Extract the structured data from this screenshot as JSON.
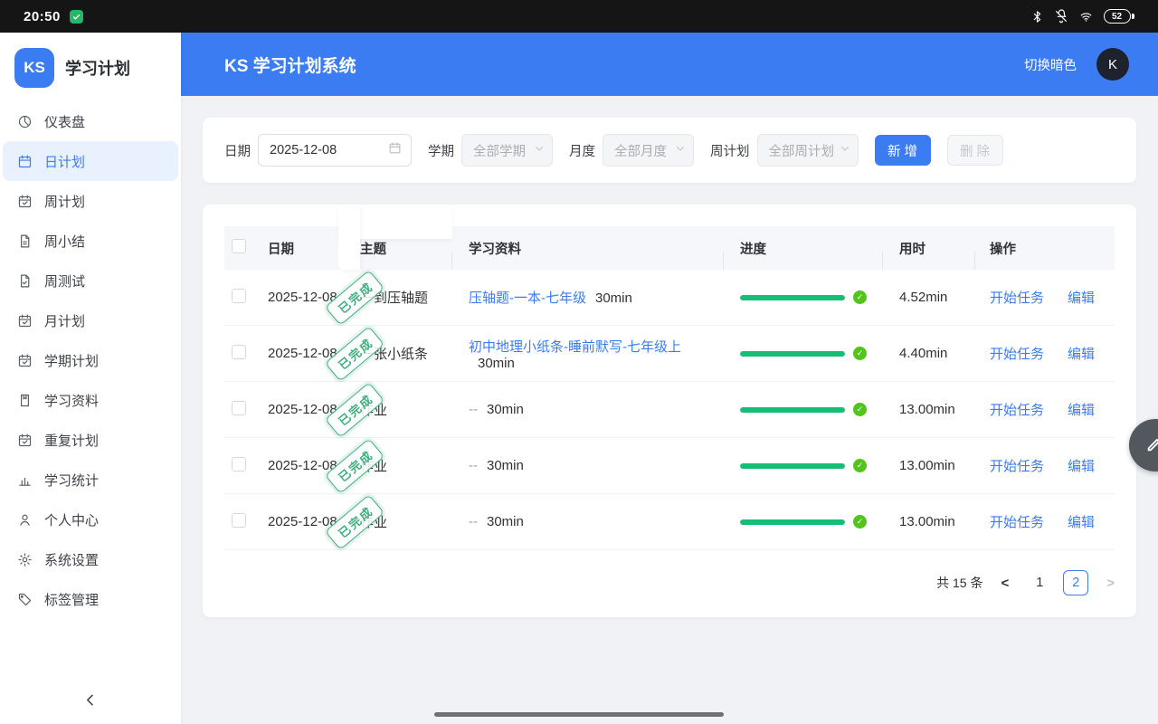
{
  "status_bar": {
    "time": "20:50",
    "battery_level": "52",
    "icons": [
      "screenshot-badge-icon",
      "bluetooth-icon",
      "notifications-off-icon",
      "wifi-icon",
      "battery-icon"
    ]
  },
  "sidebar": {
    "logo_text": "KS",
    "app_name": "学习计划",
    "collapse_button_icon": "chevron-left-icon",
    "items": [
      {
        "label": "仪表盘",
        "icon": "dashboard-icon",
        "active": false
      },
      {
        "label": "日计划",
        "icon": "calendar-icon",
        "active": true
      },
      {
        "label": "周计划",
        "icon": "calendar-check-icon",
        "active": false
      },
      {
        "label": "周小结",
        "icon": "document-icon",
        "active": false
      },
      {
        "label": "周测试",
        "icon": "document-check-icon",
        "active": false
      },
      {
        "label": "月计划",
        "icon": "calendar-check-icon",
        "active": false
      },
      {
        "label": "学期计划",
        "icon": "calendar-check-icon",
        "active": false
      },
      {
        "label": "学习资料",
        "icon": "file-icon",
        "active": false
      },
      {
        "label": "重复计划",
        "icon": "calendar-check-icon",
        "active": false
      },
      {
        "label": "学习统计",
        "icon": "bar-chart-icon",
        "active": false
      },
      {
        "label": "个人中心",
        "icon": "user-icon",
        "active": false
      },
      {
        "label": "系统设置",
        "icon": "gear-icon",
        "active": false
      },
      {
        "label": "标签管理",
        "icon": "tag-icon",
        "active": false
      }
    ]
  },
  "header": {
    "title": "KS 学习计划系统",
    "theme_toggle_label": "切换暗色",
    "avatar_text": "K"
  },
  "filters": {
    "date_label": "日期",
    "date_value": "2025-12-08",
    "semester_label": "学期",
    "semester_value": "全部学期",
    "month_label": "月度",
    "month_value": "全部月度",
    "week_label": "周计划",
    "week_value": "全部周计划",
    "add_button": "新 增",
    "delete_button": "删 除"
  },
  "table": {
    "columns": [
      "日期",
      "主题",
      "学习资料",
      "进度",
      "用时",
      "操作"
    ],
    "stamp_text": "已完成",
    "actions": {
      "start": "开始任务",
      "edit": "编辑"
    },
    "rows": [
      {
        "date": "2025-12-08",
        "topic": "一到压轴题",
        "material": "压轴题-一本-七年级",
        "material_is_link": true,
        "duration": "30min",
        "progress": 100,
        "time_used": "4.52min"
      },
      {
        "date": "2025-12-08",
        "topic": "一张小纸条",
        "material": "初中地理小纸条-睡前默写-七年级上",
        "material_is_link": true,
        "duration": "30min",
        "progress": 100,
        "time_used": "4.40min"
      },
      {
        "date": "2025-12-08",
        "topic": "作业",
        "material": "--",
        "material_is_link": false,
        "duration": "30min",
        "progress": 100,
        "time_used": "13.00min"
      },
      {
        "date": "2025-12-08",
        "topic": "作业",
        "material": "--",
        "material_is_link": false,
        "duration": "30min",
        "progress": 100,
        "time_used": "13.00min"
      },
      {
        "date": "2025-12-08",
        "topic": "作业",
        "material": "--",
        "material_is_link": false,
        "duration": "30min",
        "progress": 100,
        "time_used": "13.00min"
      }
    ]
  },
  "pagination": {
    "total_text": "共 15 条",
    "prev_label": "<",
    "next_label": ">",
    "pages": [
      "1",
      "2"
    ],
    "current_page": "2"
  },
  "icons": {
    "progress_complete": "check-circle-icon",
    "floating_button": "pencil-icon",
    "date_field": "calendar-icon",
    "select_arrow": "chevron-down-icon"
  },
  "colors": {
    "accent": "#3b7cf2",
    "header_bg": "#3b7cf2",
    "progress_green": "#16bd74",
    "check_green": "#52c41a",
    "stamp_green": "#3fae7d",
    "statusbar_bg": "#151515",
    "page_bg": "#f0f2f5",
    "active_item_bg": "#e9f1fe"
  }
}
